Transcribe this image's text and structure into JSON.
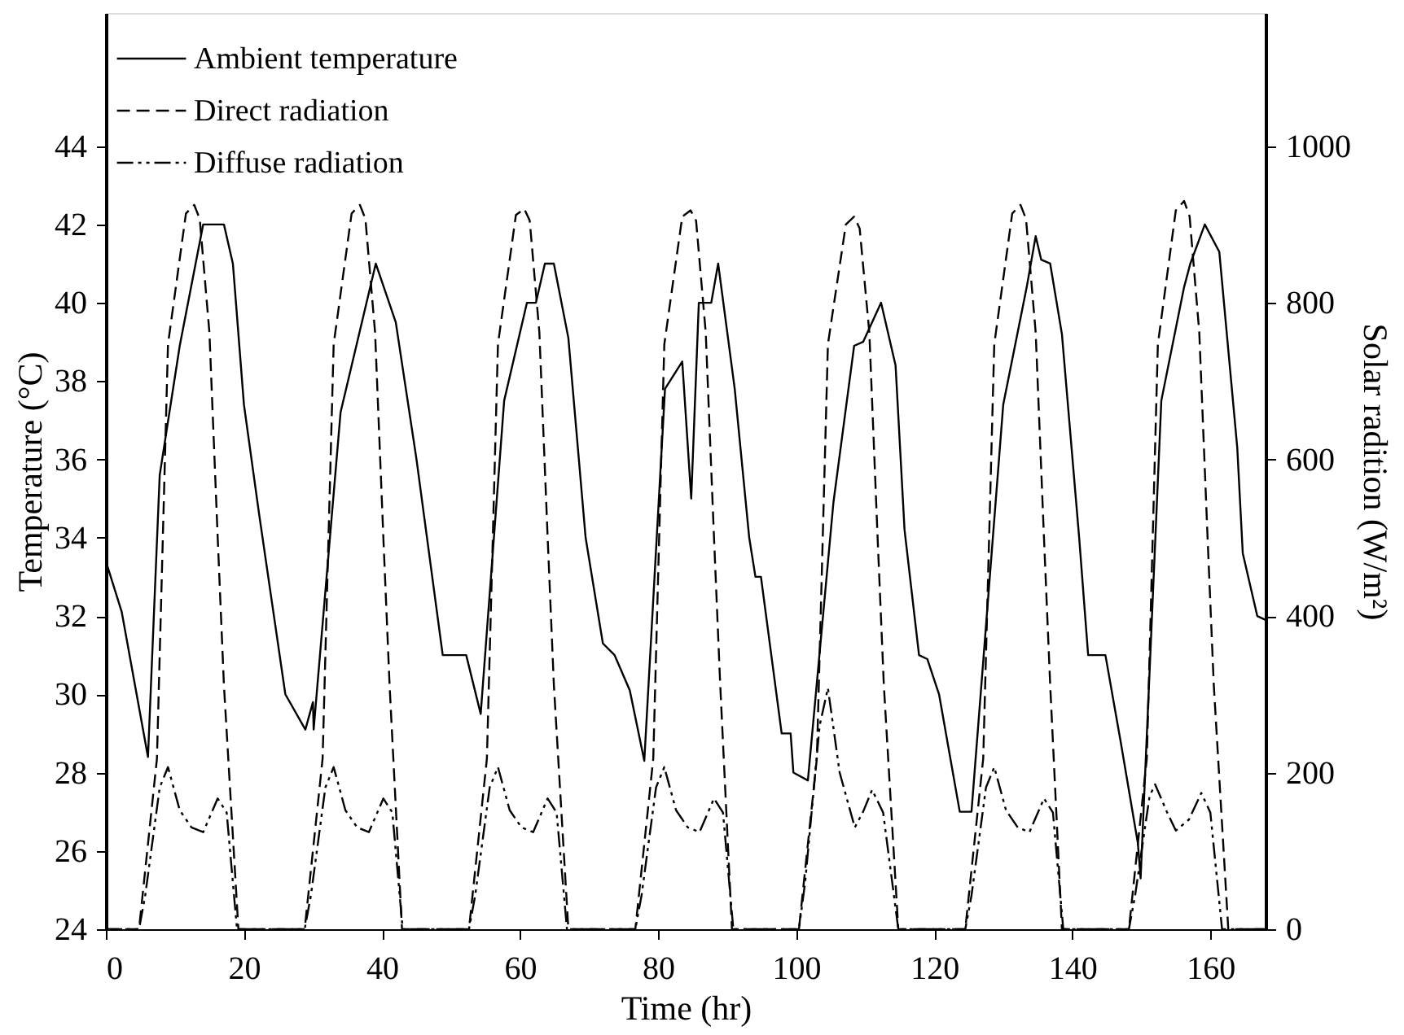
{
  "chart_data": {
    "type": "line",
    "xlabel": "Time (hr)",
    "ylabel": "Temperature (°C)",
    "y2label": "Solar radition (W/m²)",
    "xlim": [
      0,
      168
    ],
    "xticks": [
      0,
      20,
      40,
      60,
      80,
      100,
      120,
      140,
      160
    ],
    "ylim": [
      24,
      47.4
    ],
    "yticks": [
      24,
      26,
      28,
      30,
      32,
      34,
      36,
      38,
      40,
      42,
      44
    ],
    "y2lim": [
      0,
      1170
    ],
    "y2ticks": [
      0,
      200,
      400,
      600,
      800,
      1000
    ],
    "grid": false,
    "legend": "top left",
    "marker": "none",
    "series": [
      {
        "name": "Ambient temperature",
        "color": "#000000",
        "line_style": "solid",
        "axis": "y",
        "x": [
          0,
          2.3,
          6.1,
          7.8,
          10.7,
          14.1,
          17.1,
          18.4,
          20,
          22.2,
          26,
          28.9,
          30,
          30.1,
          34,
          39.1,
          42,
          45,
          48.8,
          52.2,
          54.3,
          57.7,
          61,
          62.3,
          63.6,
          64.9,
          67,
          69.5,
          72,
          73.7,
          75.9,
          78,
          81,
          83.5,
          84.8,
          85.9,
          87.7,
          88.7,
          91.1,
          93.2,
          94.1,
          94.9,
          97.9,
          99.2,
          99.6,
          101.7,
          105.4,
          108.4,
          109.7,
          112.3,
          114.4,
          115.7,
          117.8,
          119,
          120.7,
          123.7,
          125.4,
          130,
          133.4,
          134.7,
          135.5,
          136.8,
          138.5,
          141,
          142.3,
          144.8,
          147,
          149.5,
          149.9,
          152.9,
          156.2,
          157.1,
          159.2,
          161.3,
          163.9,
          164.7,
          166.8,
          168
        ],
        "values": [
          33.4,
          32.1,
          28.4,
          35.6,
          38.9,
          42,
          42,
          41,
          37.4,
          34.6,
          30,
          29.1,
          29.8,
          29.1,
          37.2,
          41,
          39.5,
          36,
          31,
          31,
          29.5,
          37.5,
          40,
          40,
          41,
          41,
          39.1,
          34,
          31.3,
          31,
          30.1,
          28.3,
          37.8,
          38.5,
          35,
          40,
          40,
          41,
          37.8,
          34,
          33,
          33,
          29,
          29,
          28,
          27.8,
          34.9,
          38.9,
          39,
          40,
          38.4,
          34.2,
          31,
          30.9,
          30,
          27,
          27,
          37.4,
          40.4,
          41.7,
          41.1,
          41,
          39.2,
          34,
          31,
          31,
          28.8,
          26.2,
          25.3,
          37.5,
          40.4,
          41,
          42,
          41.3,
          36.3,
          33.6,
          32,
          31.9
        ]
      },
      {
        "name": "Direct radiation",
        "color": "#000000",
        "line_style": "dashed",
        "axis": "y2",
        "x": [
          0,
          4.8,
          7.4,
          9,
          11.6,
          12.8,
          13.6,
          15,
          16.2,
          17.1,
          19.2,
          28.8,
          31.4,
          33,
          35.6,
          36.8,
          37.6,
          39,
          40.2,
          41.1,
          42.9,
          52.6,
          55.2,
          56.8,
          59.4,
          60.6,
          61.4,
          62.8,
          64,
          64.9,
          67,
          76.7,
          79.3,
          80.9,
          83.5,
          84.7,
          85.5,
          86.9,
          88.1,
          89,
          90.7,
          100.4,
          103,
          104.6,
          107.2,
          108.4,
          109.2,
          110.6,
          111.8,
          112.7,
          114.8,
          124.5,
          127.1,
          128.7,
          131.3,
          132.5,
          133.3,
          134.7,
          135.9,
          136.8,
          138.5,
          148.2,
          150.8,
          152.4,
          155,
          156.2,
          157,
          158.4,
          159.6,
          160.5,
          162.6,
          168
        ],
        "values": [
          0,
          0,
          218,
          747,
          914,
          925,
          907,
          762,
          500,
          312,
          0,
          0,
          218,
          747,
          914,
          925,
          907,
          762,
          500,
          312,
          0,
          0,
          218,
          747,
          912,
          920,
          905,
          762,
          500,
          312,
          0,
          0,
          218,
          747,
          910,
          918,
          905,
          762,
          500,
          312,
          0,
          0,
          218,
          747,
          900,
          910,
          895,
          762,
          500,
          312,
          0,
          0,
          218,
          747,
          914,
          925,
          907,
          762,
          500,
          312,
          0,
          0,
          218,
          747,
          918,
          930,
          910,
          762,
          500,
          312,
          0,
          0
        ]
      },
      {
        "name": "Diffuse radiation",
        "color": "#000000",
        "line_style": "dashdot",
        "axis": "y2",
        "x": [
          0,
          4.8,
          5.7,
          7.8,
          9,
          10.7,
          12.4,
          14.1,
          16.2,
          17.5,
          19,
          28.8,
          29.7,
          31.8,
          33,
          34.7,
          36.4,
          38.1,
          40.2,
          41.5,
          43,
          52.6,
          53.5,
          55.6,
          56.8,
          58.5,
          60.2,
          61.9,
          64,
          65.3,
          66.8,
          76.7,
          77.6,
          79.7,
          80.9,
          82.6,
          84.3,
          86,
          88.1,
          89.4,
          90.9,
          100.4,
          101.3,
          103.4,
          104.6,
          106.3,
          108.5,
          109.7,
          111,
          112.6,
          114.8,
          124.5,
          125.4,
          127.5,
          128.7,
          130.4,
          132.1,
          133.8,
          135.9,
          137.2,
          138.7,
          148.2,
          149.1,
          151.2,
          152,
          153.7,
          155,
          156.9,
          158.7,
          160,
          161.7,
          168
        ],
        "values": [
          0,
          0,
          43,
          181,
          207,
          152,
          130,
          124,
          167,
          149,
          0,
          0,
          43,
          181,
          207,
          152,
          130,
          124,
          167,
          149,
          0,
          0,
          43,
          181,
          207,
          152,
          130,
          124,
          167,
          149,
          0,
          0,
          43,
          181,
          207,
          152,
          130,
          124,
          167,
          149,
          0,
          0,
          60,
          260,
          308,
          200,
          130,
          150,
          178,
          149,
          0,
          0,
          43,
          181,
          207,
          152,
          130,
          124,
          167,
          149,
          0,
          0,
          43,
          170,
          185,
          150,
          126,
          140,
          174,
          149,
          0,
          0
        ]
      }
    ]
  }
}
